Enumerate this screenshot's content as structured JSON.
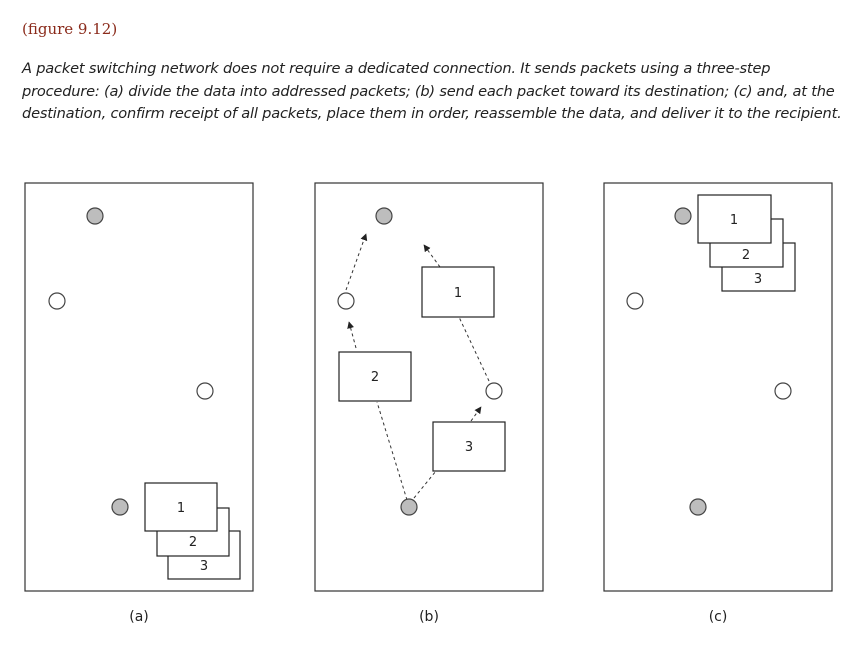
{
  "figure": {
    "number_label": "(figure 9.12)",
    "caption": "A packet switching network does not require a dedicated connection. It sends packets using a three-step procedure: (a) divide the data into addressed packets; (b) send each packet toward its destination; (c) and, at the destination, confirm receipt of all packets, place them in order, reassemble the data, and deliver it to the recipient."
  },
  "colors": {
    "node_filled": "#bdbdbd",
    "node_empty": "#ffffff",
    "stroke": "#333333",
    "figure_number": "#8a2a1a"
  },
  "panels": [
    {
      "label": "(a)",
      "packets": [
        "1",
        "2",
        "3"
      ]
    },
    {
      "label": "(b)",
      "packets": [
        "1",
        "2",
        "3"
      ]
    },
    {
      "label": "(c)",
      "packets": [
        "1",
        "2",
        "3"
      ]
    }
  ]
}
